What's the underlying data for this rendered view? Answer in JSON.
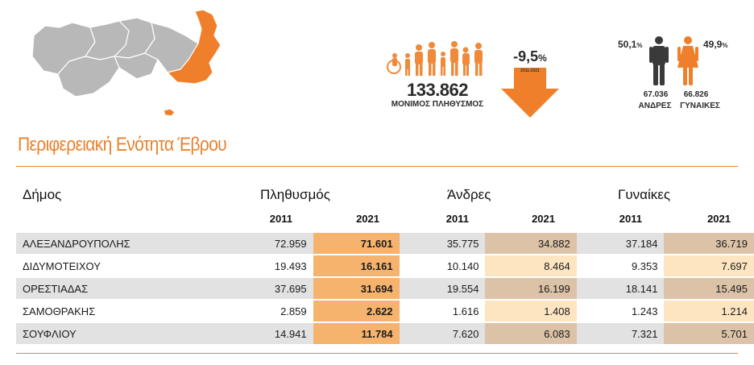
{
  "colors": {
    "accent": "#e8822f",
    "pop_col_bg": "#f5b36d",
    "gray_row": "#e2e2e2",
    "tan_cell": "#dcc2a7",
    "peach_cell": "#fde5c2"
  },
  "infographic": {
    "population_icon": "family-icon",
    "population_number": "133.862",
    "population_label": "ΜΟΝΙΜΟΣ ΠΛΗΘΥΣΜΟΣ",
    "change_value": "-9,5",
    "change_unit": "%",
    "change_years": "2011-2021",
    "change_icon": "down-arrow-icon",
    "male_pct": "50,1",
    "female_pct": "49,9",
    "pct_unit": "%",
    "male_number": "67.036",
    "female_number": "66.826",
    "male_label": "ΑΝΔΡΕΣ",
    "female_label": "ΓΥΝΑΙΚΕΣ"
  },
  "title": "Περιφερειακή Ενότητα Έβρου",
  "table": {
    "col_municipality": "Δήμος",
    "col_population": "Πληθυσμός",
    "col_men": "Άνδρες",
    "col_women": "Γυναίκες",
    "year_a": "2011",
    "year_b": "2021",
    "rows": [
      {
        "name": "ΑΛΕΞΑΝΔΡΟΥΠΟΛΗΣ",
        "v": [
          "72.959",
          "71.601",
          "35.775",
          "34.882",
          "37.184",
          "36.719"
        ]
      },
      {
        "name": "ΔΙΔΥΜΟΤΕΙΧΟΥ",
        "v": [
          "19.493",
          "16.161",
          "10.140",
          "8.464",
          "9.353",
          "7.697"
        ]
      },
      {
        "name": "ΟΡΕΣΤΙΑΔΑΣ",
        "v": [
          "37.695",
          "31.694",
          "19.554",
          "16.199",
          "18.141",
          "15.495"
        ]
      },
      {
        "name": "ΣΑΜΟΘΡΑΚΗΣ",
        "v": [
          "2.859",
          "2.622",
          "1.616",
          "1.408",
          "1.243",
          "1.214"
        ]
      },
      {
        "name": "ΣΟΥΦΛΙΟΥ",
        "v": [
          "14.941",
          "11.784",
          "7.620",
          "6.083",
          "7.321",
          "5.701"
        ]
      }
    ]
  }
}
